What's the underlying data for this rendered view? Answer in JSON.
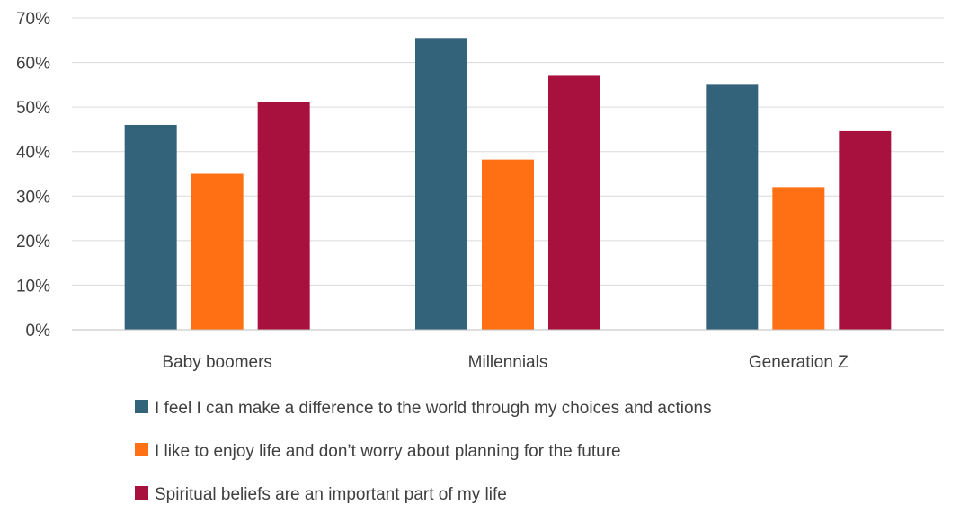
{
  "chart_data": {
    "type": "bar",
    "categories": [
      "Baby boomers",
      "Millennials",
      "Generation Z"
    ],
    "series": [
      {
        "name": "I feel I can make a difference to the world through my choices and actions",
        "color": "#33637b",
        "values": [
          46,
          65.5,
          55
        ]
      },
      {
        "name": "I like to enjoy life and don’t worry about planning for the future",
        "color": "#fe7013",
        "values": [
          35,
          38.2,
          32
        ]
      },
      {
        "name": "Spiritual beliefs are an important part of my life",
        "color": "#a8103d",
        "values": [
          51.2,
          57,
          44.6
        ]
      }
    ],
    "y_ticks": [
      "0%",
      "10%",
      "20%",
      "30%",
      "40%",
      "50%",
      "60%",
      "70%"
    ],
    "ylim": [
      0,
      70
    ],
    "grid": true,
    "legend_position": "bottom"
  }
}
